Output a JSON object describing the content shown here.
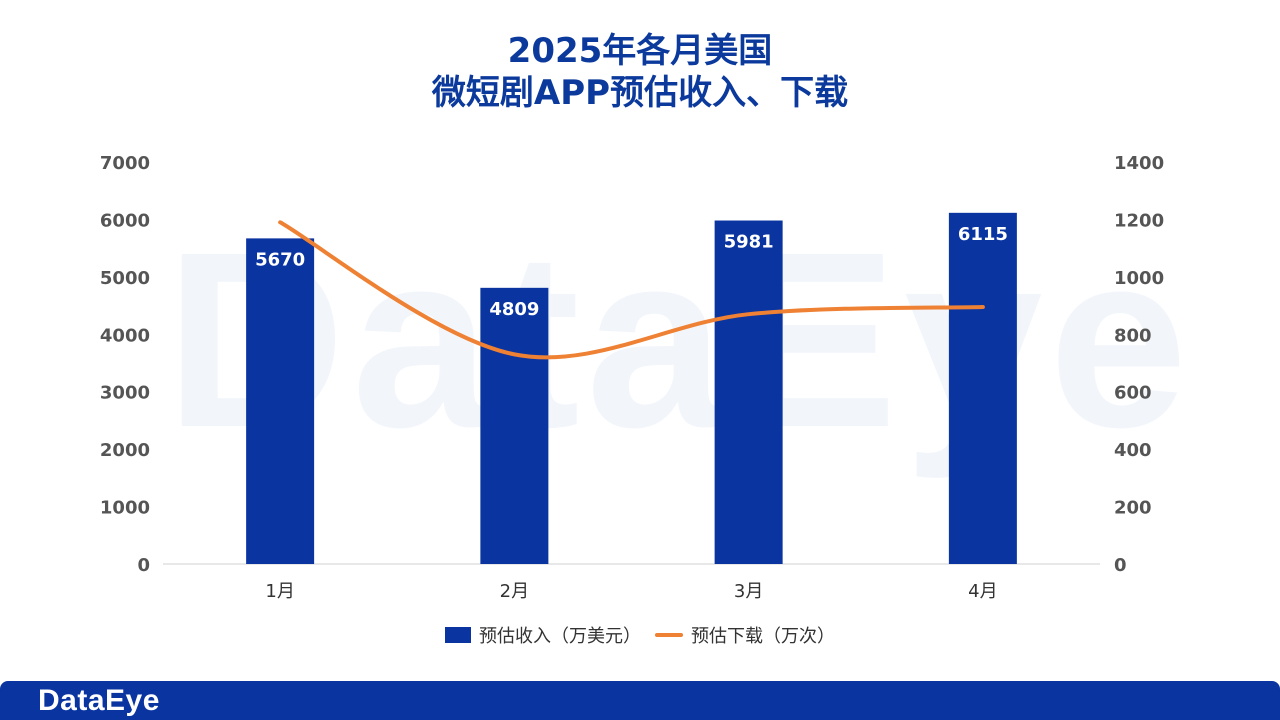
{
  "title": {
    "line1": "2025年各月美国",
    "line2": "微短剧APP预估收入、下载"
  },
  "watermark": "DataEye",
  "footer": {
    "logo": "DataEye"
  },
  "colors": {
    "bar": "#0a34a0",
    "line": "#ee8133",
    "title": "#0b3a9c"
  },
  "chart_data": {
    "type": "bar",
    "title": "2025年各月美国 微短剧APP预估收入、下载",
    "categories": [
      "1月",
      "2月",
      "3月",
      "4月"
    ],
    "series": [
      {
        "name": "预估收入（万美元）",
        "type": "bar",
        "axis": "left",
        "values": [
          5670,
          4809,
          5981,
          6115
        ]
      },
      {
        "name": "预估下载（万次）",
        "type": "line",
        "axis": "right",
        "smooth": true,
        "values": [
          1190,
          730,
          870,
          895
        ]
      }
    ],
    "y_left": {
      "range": [
        0,
        7000
      ],
      "ticks": [
        0,
        1000,
        2000,
        3000,
        4000,
        5000,
        6000,
        7000
      ]
    },
    "y_right": {
      "range": [
        0,
        1400
      ],
      "ticks": [
        0,
        200,
        400,
        600,
        800,
        1000,
        1200,
        1400
      ]
    },
    "grid": false,
    "legend_position": "bottom"
  }
}
